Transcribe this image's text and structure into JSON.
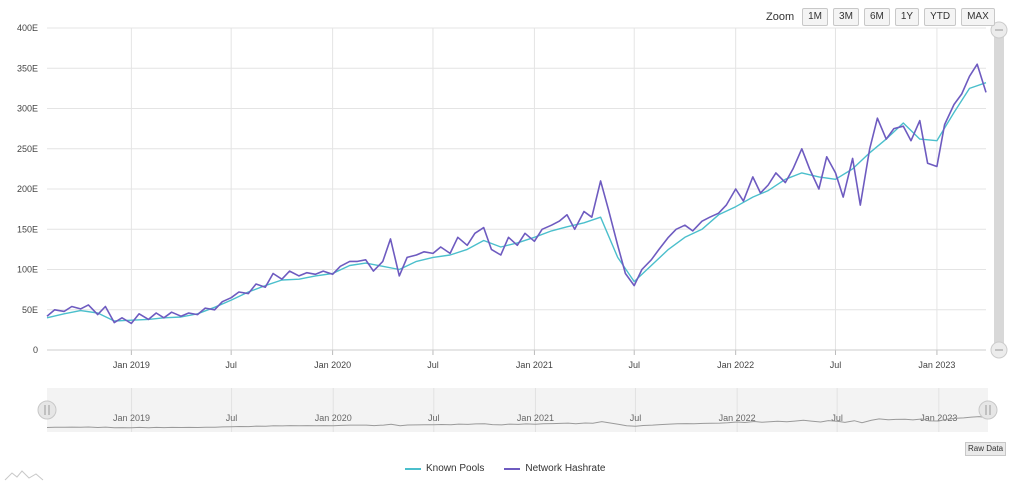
{
  "zoom": {
    "label": "Zoom",
    "buttons": [
      "1M",
      "3M",
      "6M",
      "1Y",
      "YTD",
      "MAX"
    ]
  },
  "raw_data_label": "Raw Data",
  "colors": {
    "known_pools": "#4bbfcc",
    "network_hashrate": "#6e5bc0",
    "navigator": "#9a9a9a",
    "grid": "#e4e4e4"
  },
  "chart_data": {
    "type": "line",
    "x_range": [
      "2018-08-01",
      "2023-03-31"
    ],
    "ylim": [
      0,
      400
    ],
    "y_ticks": [
      "0",
      "50E",
      "100E",
      "150E",
      "200E",
      "250E",
      "300E",
      "350E",
      "400E"
    ],
    "x_ticks": [
      {
        "date": "2019-01-01",
        "label": "Jan 2019"
      },
      {
        "date": "2019-07-01",
        "label": "Jul"
      },
      {
        "date": "2020-01-01",
        "label": "Jan 2020"
      },
      {
        "date": "2020-07-01",
        "label": "Jul"
      },
      {
        "date": "2021-01-01",
        "label": "Jan 2021"
      },
      {
        "date": "2021-07-01",
        "label": "Jul"
      },
      {
        "date": "2022-01-01",
        "label": "Jan 2022"
      },
      {
        "date": "2022-07-01",
        "label": "Jul"
      },
      {
        "date": "2023-01-01",
        "label": "Jan 2023"
      }
    ],
    "series": [
      {
        "name": "Known Pools",
        "color": "#4bbfcc",
        "points": [
          [
            "2018-08-01",
            40
          ],
          [
            "2018-09-01",
            45
          ],
          [
            "2018-10-01",
            49
          ],
          [
            "2018-11-01",
            46
          ],
          [
            "2018-12-01",
            36
          ],
          [
            "2019-01-01",
            37
          ],
          [
            "2019-02-01",
            38
          ],
          [
            "2019-03-01",
            40
          ],
          [
            "2019-04-01",
            41
          ],
          [
            "2019-05-01",
            45
          ],
          [
            "2019-06-01",
            53
          ],
          [
            "2019-07-01",
            62
          ],
          [
            "2019-08-01",
            72
          ],
          [
            "2019-09-01",
            80
          ],
          [
            "2019-10-01",
            87
          ],
          [
            "2019-11-01",
            88
          ],
          [
            "2019-12-01",
            92
          ],
          [
            "2020-01-01",
            95
          ],
          [
            "2020-02-01",
            105
          ],
          [
            "2020-03-01",
            108
          ],
          [
            "2020-04-01",
            104
          ],
          [
            "2020-05-01",
            100
          ],
          [
            "2020-06-01",
            110
          ],
          [
            "2020-07-01",
            115
          ],
          [
            "2020-08-01",
            118
          ],
          [
            "2020-09-01",
            125
          ],
          [
            "2020-10-01",
            136
          ],
          [
            "2020-11-01",
            128
          ],
          [
            "2020-12-01",
            133
          ],
          [
            "2021-01-01",
            140
          ],
          [
            "2021-02-01",
            148
          ],
          [
            "2021-03-01",
            153
          ],
          [
            "2021-04-01",
            158
          ],
          [
            "2021-05-01",
            165
          ],
          [
            "2021-06-01",
            115
          ],
          [
            "2021-07-01",
            85
          ],
          [
            "2021-08-01",
            105
          ],
          [
            "2021-09-01",
            125
          ],
          [
            "2021-10-01",
            140
          ],
          [
            "2021-11-01",
            150
          ],
          [
            "2021-12-01",
            168
          ],
          [
            "2022-01-01",
            178
          ],
          [
            "2022-02-01",
            190
          ],
          [
            "2022-03-01",
            198
          ],
          [
            "2022-04-01",
            212
          ],
          [
            "2022-05-01",
            220
          ],
          [
            "2022-06-01",
            215
          ],
          [
            "2022-07-01",
            212
          ],
          [
            "2022-08-01",
            225
          ],
          [
            "2022-09-01",
            245
          ],
          [
            "2022-10-01",
            262
          ],
          [
            "2022-11-01",
            282
          ],
          [
            "2022-12-01",
            262
          ],
          [
            "2023-01-01",
            260
          ],
          [
            "2023-02-01",
            295
          ],
          [
            "2023-03-01",
            325
          ],
          [
            "2023-03-31",
            332
          ]
        ]
      },
      {
        "name": "Network Hashrate",
        "color": "#6e5bc0",
        "points": [
          [
            "2018-08-01",
            42
          ],
          [
            "2018-08-15",
            50
          ],
          [
            "2018-09-01",
            48
          ],
          [
            "2018-09-15",
            54
          ],
          [
            "2018-10-01",
            51
          ],
          [
            "2018-10-15",
            56
          ],
          [
            "2018-11-01",
            44
          ],
          [
            "2018-11-15",
            54
          ],
          [
            "2018-12-01",
            34
          ],
          [
            "2018-12-15",
            40
          ],
          [
            "2019-01-01",
            33
          ],
          [
            "2019-01-15",
            45
          ],
          [
            "2019-02-01",
            38
          ],
          [
            "2019-02-15",
            46
          ],
          [
            "2019-03-01",
            40
          ],
          [
            "2019-03-15",
            47
          ],
          [
            "2019-04-01",
            42
          ],
          [
            "2019-04-15",
            46
          ],
          [
            "2019-05-01",
            44
          ],
          [
            "2019-05-15",
            52
          ],
          [
            "2019-06-01",
            50
          ],
          [
            "2019-06-15",
            60
          ],
          [
            "2019-07-01",
            65
          ],
          [
            "2019-07-15",
            72
          ],
          [
            "2019-08-01",
            70
          ],
          [
            "2019-08-15",
            82
          ],
          [
            "2019-09-01",
            78
          ],
          [
            "2019-09-15",
            95
          ],
          [
            "2019-10-01",
            88
          ],
          [
            "2019-10-15",
            98
          ],
          [
            "2019-11-01",
            92
          ],
          [
            "2019-11-15",
            96
          ],
          [
            "2019-12-01",
            94
          ],
          [
            "2019-12-15",
            98
          ],
          [
            "2020-01-01",
            94
          ],
          [
            "2020-01-15",
            104
          ],
          [
            "2020-02-01",
            110
          ],
          [
            "2020-02-15",
            110
          ],
          [
            "2020-03-01",
            112
          ],
          [
            "2020-03-15",
            98
          ],
          [
            "2020-04-01",
            110
          ],
          [
            "2020-04-15",
            138
          ],
          [
            "2020-05-01",
            92
          ],
          [
            "2020-05-15",
            115
          ],
          [
            "2020-06-01",
            118
          ],
          [
            "2020-06-15",
            122
          ],
          [
            "2020-07-01",
            120
          ],
          [
            "2020-07-15",
            128
          ],
          [
            "2020-08-01",
            120
          ],
          [
            "2020-08-15",
            140
          ],
          [
            "2020-09-01",
            130
          ],
          [
            "2020-09-15",
            145
          ],
          [
            "2020-10-01",
            152
          ],
          [
            "2020-10-15",
            125
          ],
          [
            "2020-11-01",
            118
          ],
          [
            "2020-11-15",
            140
          ],
          [
            "2020-12-01",
            130
          ],
          [
            "2020-12-15",
            145
          ],
          [
            "2021-01-01",
            135
          ],
          [
            "2021-01-15",
            150
          ],
          [
            "2021-02-01",
            155
          ],
          [
            "2021-02-15",
            160
          ],
          [
            "2021-03-01",
            168
          ],
          [
            "2021-03-15",
            150
          ],
          [
            "2021-04-01",
            172
          ],
          [
            "2021-04-15",
            165
          ],
          [
            "2021-05-01",
            210
          ],
          [
            "2021-05-15",
            175
          ],
          [
            "2021-06-01",
            130
          ],
          [
            "2021-06-15",
            95
          ],
          [
            "2021-07-01",
            80
          ],
          [
            "2021-07-15",
            100
          ],
          [
            "2021-08-01",
            112
          ],
          [
            "2021-08-15",
            125
          ],
          [
            "2021-09-01",
            140
          ],
          [
            "2021-09-15",
            150
          ],
          [
            "2021-10-01",
            155
          ],
          [
            "2021-10-15",
            148
          ],
          [
            "2021-11-01",
            160
          ],
          [
            "2021-11-15",
            165
          ],
          [
            "2021-12-01",
            170
          ],
          [
            "2021-12-15",
            180
          ],
          [
            "2022-01-01",
            200
          ],
          [
            "2022-01-15",
            185
          ],
          [
            "2022-02-01",
            215
          ],
          [
            "2022-02-15",
            195
          ],
          [
            "2022-03-01",
            205
          ],
          [
            "2022-03-15",
            220
          ],
          [
            "2022-04-01",
            208
          ],
          [
            "2022-04-15",
            225
          ],
          [
            "2022-05-01",
            250
          ],
          [
            "2022-05-15",
            225
          ],
          [
            "2022-06-01",
            200
          ],
          [
            "2022-06-15",
            240
          ],
          [
            "2022-07-01",
            220
          ],
          [
            "2022-07-15",
            190
          ],
          [
            "2022-08-01",
            238
          ],
          [
            "2022-08-15",
            180
          ],
          [
            "2022-09-01",
            250
          ],
          [
            "2022-09-15",
            288
          ],
          [
            "2022-10-01",
            262
          ],
          [
            "2022-10-15",
            275
          ],
          [
            "2022-11-01",
            278
          ],
          [
            "2022-11-15",
            260
          ],
          [
            "2022-12-01",
            285
          ],
          [
            "2022-12-15",
            232
          ],
          [
            "2023-01-01",
            228
          ],
          [
            "2023-01-15",
            280
          ],
          [
            "2023-02-01",
            305
          ],
          [
            "2023-02-15",
            318
          ],
          [
            "2023-03-01",
            340
          ],
          [
            "2023-03-15",
            355
          ],
          [
            "2023-03-31",
            320
          ]
        ]
      }
    ],
    "navigator": {
      "x_ticks": [
        "Jan 2019",
        "Jul",
        "Jan 2020",
        "Jul",
        "Jan 2021",
        "Jul",
        "Jan 2022",
        "Jul",
        "Jan 2023"
      ]
    }
  }
}
